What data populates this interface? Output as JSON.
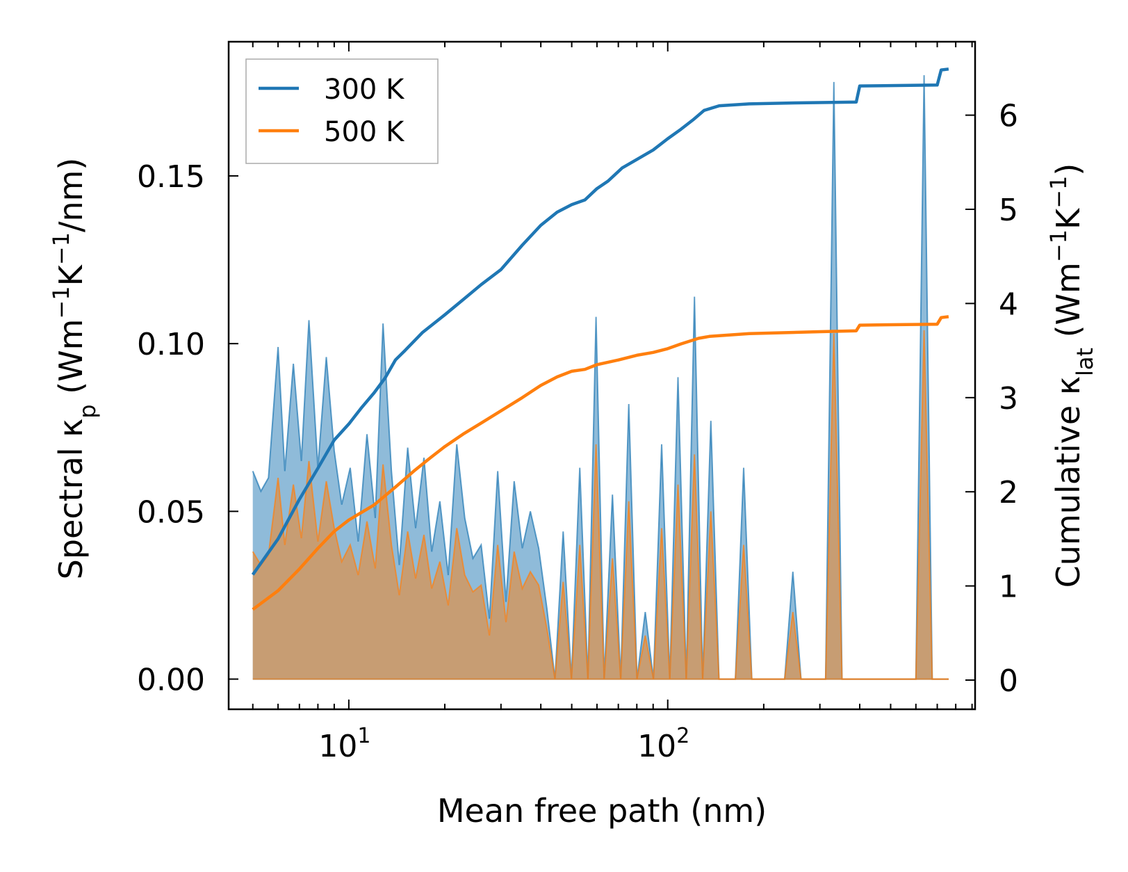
{
  "chart_data": {
    "type": "line",
    "title": "",
    "xlabel": "Mean free path (nm)",
    "xscale": "log",
    "xlim": [
      4.2,
      920
    ],
    "x_ticks": [
      {
        "value": 10,
        "base": "10",
        "exp": "1"
      },
      {
        "value": 100,
        "base": "10",
        "exp": "2"
      }
    ],
    "ylabel_left": {
      "main": "Spectral κ",
      "sub": "p",
      "units_open": " (Wm",
      "sup1": "−1",
      "mid": "K",
      "sup2": "−1",
      "units_close": "/nm)"
    },
    "ylabel_right": {
      "main": "Cumulative κ",
      "sub": "lat",
      "units_open": " (Wm",
      "sup1": "−1",
      "mid": "K",
      "sup2": "−1",
      "units_close": ")"
    },
    "ylim_left": [
      -0.009,
      0.19
    ],
    "ylim_right": [
      -0.31,
      6.78
    ],
    "y_ticks_left": [
      "0.00",
      "0.05",
      "0.10",
      "0.15"
    ],
    "y_ticks_right": [
      "0",
      "1",
      "2",
      "3",
      "4",
      "5",
      "6"
    ],
    "legend": {
      "position": "top-left",
      "entries": [
        "300 K",
        "500 K"
      ]
    },
    "colors": {
      "300K": "#1f77b4",
      "500K": "#ff7f0e",
      "fill_300K": "#1f77b4",
      "fill_500K": "#ff7f0e"
    },
    "series": [
      {
        "name": "300 K",
        "color": "#1f77b4",
        "spectral": {
          "x": [
            5.0,
            5.3,
            5.6,
            6.0,
            6.3,
            6.7,
            7.1,
            7.5,
            8.0,
            8.5,
            9.0,
            9.5,
            10.1,
            10.7,
            11.4,
            12.1,
            12.8,
            13.6,
            14.4,
            15.3,
            16.2,
            17.2,
            18.2,
            19.3,
            20.5,
            21.8,
            23.1,
            24.5,
            26.0,
            27.6,
            29.3,
            31.1,
            33.0,
            35.0,
            37.1,
            39.4,
            41.8,
            44.3,
            47.0,
            49.9,
            53.0,
            56.2,
            59.6,
            63.2,
            67.1,
            71.2,
            75.5,
            80.1,
            85.0,
            90.2,
            95.7,
            101.5,
            107.7,
            114.3,
            121.3,
            128.7,
            136.5,
            144.8,
            153.7,
            163.0,
            173.0,
            183.5,
            194.7,
            206.6,
            219.2,
            232.6,
            246.8,
            261.8,
            277.8,
            294.7,
            312.7,
            331.8,
            352.0,
            373.5,
            396.3,
            420.5,
            446.1,
            473.3,
            502.2,
            532.8,
            565.3,
            599.8,
            636.4,
            675.2,
            716.4,
            760.1
          ],
          "values": [
            0.062,
            0.056,
            0.06,
            0.099,
            0.062,
            0.094,
            0.065,
            0.107,
            0.063,
            0.096,
            0.068,
            0.052,
            0.063,
            0.041,
            0.073,
            0.048,
            0.106,
            0.062,
            0.034,
            0.069,
            0.045,
            0.066,
            0.038,
            0.053,
            0.031,
            0.07,
            0.048,
            0.036,
            0.04,
            0.018,
            0.062,
            0.023,
            0.059,
            0.039,
            0.05,
            0.039,
            0.021,
            0.0,
            0.044,
            0.0,
            0.063,
            0.0,
            0.108,
            0.0,
            0.055,
            0.0,
            0.082,
            0.0,
            0.02,
            0.0,
            0.07,
            0.0,
            0.09,
            0.0,
            0.114,
            0.0,
            0.077,
            0.0,
            0.0,
            0.0,
            0.063,
            0.0,
            0.0,
            0.0,
            0.0,
            0.0,
            0.032,
            0.0,
            0.0,
            0.0,
            0.0,
            0.178,
            0.0,
            0.0,
            0.0,
            0.0,
            0.0,
            0.0,
            0.0,
            0.0,
            0.0,
            0.0,
            0.18,
            0.0,
            0.0,
            0.0
          ]
        },
        "cumulative": {
          "x": [
            5.0,
            6.0,
            7.0,
            8.0,
            9.0,
            10.0,
            11.0,
            12.0,
            13.0,
            14.0,
            15.0,
            17.0,
            20.0,
            23.0,
            26.0,
            30.0,
            35.0,
            40.0,
            45.0,
            50.0,
            55.0,
            60.0,
            65.0,
            72.0,
            80.0,
            90.0,
            100.0,
            110.0,
            120.0,
            130.0,
            145.0,
            180.0,
            250.0,
            390.0,
            400.0,
            700.0,
            720.0,
            760.0
          ],
          "values": [
            1.12,
            1.5,
            1.92,
            2.25,
            2.55,
            2.72,
            2.9,
            3.05,
            3.21,
            3.4,
            3.5,
            3.69,
            3.88,
            4.05,
            4.2,
            4.36,
            4.62,
            4.83,
            4.97,
            5.05,
            5.1,
            5.22,
            5.3,
            5.44,
            5.53,
            5.63,
            5.75,
            5.85,
            5.95,
            6.05,
            6.1,
            6.12,
            6.13,
            6.14,
            6.31,
            6.32,
            6.48,
            6.49
          ]
        }
      },
      {
        "name": "500 K",
        "color": "#ff7f0e",
        "spectral": {
          "x": [
            5.0,
            5.3,
            5.6,
            6.0,
            6.3,
            6.7,
            7.1,
            7.5,
            8.0,
            8.5,
            9.0,
            9.5,
            10.1,
            10.7,
            11.4,
            12.1,
            12.8,
            13.6,
            14.4,
            15.3,
            16.2,
            17.2,
            18.2,
            19.3,
            20.5,
            21.8,
            23.1,
            24.5,
            26.0,
            27.6,
            29.3,
            31.1,
            33.0,
            35.0,
            37.1,
            39.4,
            41.8,
            44.3,
            47.0,
            49.9,
            53.0,
            56.2,
            59.6,
            63.2,
            67.1,
            71.2,
            75.5,
            80.1,
            85.0,
            90.2,
            95.7,
            101.5,
            107.7,
            114.3,
            121.3,
            128.7,
            136.5,
            144.8,
            153.7,
            163.0,
            173.0,
            183.5,
            194.7,
            206.6,
            219.2,
            232.6,
            246.8,
            261.8,
            277.8,
            294.7,
            312.7,
            331.8,
            352.0,
            373.5,
            396.3,
            420.5,
            446.1,
            473.3,
            502.2,
            532.8,
            565.3,
            599.8,
            636.4,
            675.2,
            716.4,
            760.1
          ],
          "values": [
            0.038,
            0.034,
            0.037,
            0.06,
            0.04,
            0.058,
            0.042,
            0.065,
            0.041,
            0.059,
            0.045,
            0.035,
            0.04,
            0.031,
            0.047,
            0.033,
            0.064,
            0.04,
            0.025,
            0.044,
            0.03,
            0.043,
            0.027,
            0.035,
            0.022,
            0.045,
            0.031,
            0.026,
            0.028,
            0.013,
            0.04,
            0.017,
            0.038,
            0.027,
            0.032,
            0.028,
            0.015,
            0.0,
            0.029,
            0.0,
            0.04,
            0.0,
            0.07,
            0.0,
            0.036,
            0.0,
            0.053,
            0.0,
            0.013,
            0.0,
            0.045,
            0.0,
            0.058,
            0.0,
            0.067,
            0.0,
            0.05,
            0.0,
            0.0,
            0.0,
            0.04,
            0.0,
            0.0,
            0.0,
            0.0,
            0.0,
            0.02,
            0.0,
            0.0,
            0.0,
            0.0,
            0.103,
            0.0,
            0.0,
            0.0,
            0.0,
            0.0,
            0.0,
            0.0,
            0.0,
            0.0,
            0.0,
            0.104,
            0.0,
            0.0,
            0.0
          ]
        },
        "cumulative": {
          "x": [
            5.0,
            6.0,
            7.0,
            8.0,
            9.0,
            10.0,
            12.0,
            14.0,
            16.0,
            18.0,
            20.0,
            23.0,
            26.0,
            30.0,
            35.0,
            40.0,
            45.0,
            50.0,
            55.0,
            60.0,
            70.0,
            80.0,
            90.0,
            100.0,
            110.0,
            125.0,
            135.0,
            180.0,
            300.0,
            390.0,
            400.0,
            700.0,
            720.0,
            760.0
          ],
          "values": [
            0.75,
            0.95,
            1.18,
            1.4,
            1.58,
            1.7,
            1.86,
            2.05,
            2.22,
            2.36,
            2.48,
            2.62,
            2.73,
            2.86,
            3.0,
            3.13,
            3.22,
            3.28,
            3.3,
            3.35,
            3.4,
            3.45,
            3.48,
            3.52,
            3.57,
            3.63,
            3.65,
            3.68,
            3.7,
            3.71,
            3.77,
            3.78,
            3.85,
            3.86
          ]
        }
      }
    ]
  }
}
